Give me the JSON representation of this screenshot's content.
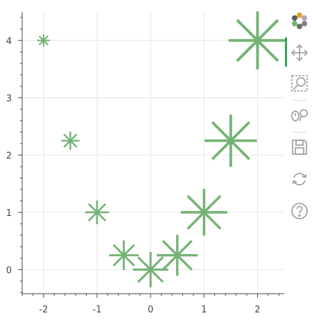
{
  "chart_data": {
    "type": "scatter",
    "marker": "asterisk",
    "x": [
      -2,
      -1.5,
      -1,
      -0.5,
      0,
      0.5,
      1,
      1.5,
      2
    ],
    "y": [
      4,
      2.25,
      1,
      0.25,
      0,
      0.25,
      1,
      2.25,
      4
    ],
    "xlim": [
      -2.4,
      2.5
    ],
    "ylim": [
      -0.42,
      4.5
    ],
    "xticks": [
      -2,
      -1,
      0,
      1,
      2
    ],
    "yticks": [
      0,
      1,
      2,
      3,
      4
    ],
    "xtick_labels": [
      "-2",
      "-1",
      "0",
      "1",
      "2"
    ],
    "ytick_labels": [
      "0",
      "1",
      "2",
      "3",
      "4"
    ],
    "grid": true,
    "marker_color": "#74b374",
    "grid_color": "#e6e6e6",
    "axis_color": "#444444"
  },
  "toolbar": {
    "tools": [
      "bokeh-logo-icon",
      "pan-icon",
      "box-zoom-icon",
      "wheel-zoom-icon",
      "save-icon",
      "reset-icon",
      "help-icon"
    ],
    "active_color": "#31a354",
    "icon_color": "#a3a3a3"
  }
}
